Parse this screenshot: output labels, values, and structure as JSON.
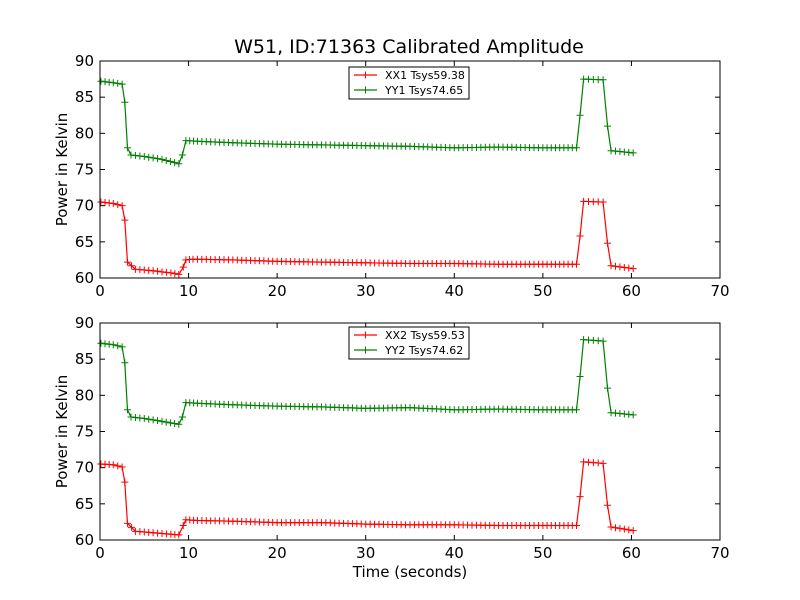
{
  "figure": {
    "title": "W51, ID:71363 Calibrated Amplitude"
  },
  "chart_data": [
    {
      "type": "line",
      "title": "W51, ID:71363 Calibrated Amplitude",
      "xlabel": "",
      "ylabel": "Power in Kelvin",
      "xlim": [
        0,
        70
      ],
      "ylim": [
        60,
        90
      ],
      "xticks": [
        0,
        10,
        20,
        30,
        40,
        50,
        60,
        70
      ],
      "yticks": [
        60,
        65,
        70,
        75,
        80,
        85,
        90
      ],
      "grid": false,
      "legend": "top-center",
      "series": [
        {
          "name": "XX1 Tsys59.38",
          "color": "#ff0000",
          "marker": "plus",
          "points": [
            [
              0.1,
              70.5
            ],
            [
              1.5,
              70.3
            ],
            [
              2.5,
              70.0
            ],
            [
              2.8,
              68.0
            ],
            [
              3.1,
              62.2
            ],
            [
              4,
              61.2
            ],
            [
              6,
              61.0
            ],
            [
              8,
              60.7
            ],
            [
              8.9,
              60.5
            ],
            [
              9.4,
              61.5
            ],
            [
              9.7,
              62.5
            ],
            [
              10.5,
              62.6
            ],
            [
              15,
              62.5
            ],
            [
              20,
              62.3
            ],
            [
              25,
              62.2
            ],
            [
              30,
              62.1
            ],
            [
              35,
              62.0
            ],
            [
              40,
              62.0
            ],
            [
              45,
              61.9
            ],
            [
              50,
              61.9
            ],
            [
              53.8,
              61.9
            ],
            [
              54.2,
              65.8
            ],
            [
              54.6,
              70.6
            ],
            [
              56.8,
              70.5
            ],
            [
              57.3,
              64.8
            ],
            [
              57.7,
              61.7
            ],
            [
              60.2,
              61.3
            ]
          ]
        },
        {
          "name": "YY1 Tsys74.65",
          "color": "#008000",
          "marker": "plus",
          "points": [
            [
              0.1,
              87.2
            ],
            [
              1.5,
              87.0
            ],
            [
              2.5,
              86.8
            ],
            [
              2.8,
              84.3
            ],
            [
              3.1,
              78.0
            ],
            [
              3.5,
              77.0
            ],
            [
              5,
              76.8
            ],
            [
              7,
              76.4
            ],
            [
              8.9,
              75.8
            ],
            [
              9.3,
              77.0
            ],
            [
              9.7,
              79.0
            ],
            [
              11,
              78.9
            ],
            [
              15,
              78.7
            ],
            [
              20,
              78.5
            ],
            [
              25,
              78.4
            ],
            [
              30,
              78.3
            ],
            [
              35,
              78.2
            ],
            [
              40,
              78.0
            ],
            [
              45,
              78.1
            ],
            [
              50,
              78.0
            ],
            [
              53.8,
              78.0
            ],
            [
              54.2,
              82.5
            ],
            [
              54.6,
              87.5
            ],
            [
              56.8,
              87.4
            ],
            [
              57.3,
              81.0
            ],
            [
              57.7,
              77.6
            ],
            [
              60.2,
              77.3
            ]
          ]
        }
      ]
    },
    {
      "type": "line",
      "title": "",
      "xlabel": "Time (seconds)",
      "ylabel": "Power in Kelvin",
      "xlim": [
        0,
        70
      ],
      "ylim": [
        60,
        90
      ],
      "xticks": [
        0,
        10,
        20,
        30,
        40,
        50,
        60,
        70
      ],
      "yticks": [
        60,
        65,
        70,
        75,
        80,
        85,
        90
      ],
      "grid": false,
      "legend": "top-center",
      "series": [
        {
          "name": "XX2 Tsys59.53",
          "color": "#ff0000",
          "marker": "plus",
          "points": [
            [
              0.1,
              70.5
            ],
            [
              1.5,
              70.4
            ],
            [
              2.5,
              70.1
            ],
            [
              2.8,
              68.0
            ],
            [
              3.1,
              62.3
            ],
            [
              4,
              61.2
            ],
            [
              6,
              61.0
            ],
            [
              8,
              60.8
            ],
            [
              8.9,
              60.7
            ],
            [
              9.4,
              62.0
            ],
            [
              9.7,
              62.8
            ],
            [
              11,
              62.7
            ],
            [
              15,
              62.6
            ],
            [
              20,
              62.4
            ],
            [
              25,
              62.4
            ],
            [
              30,
              62.2
            ],
            [
              35,
              62.1
            ],
            [
              40,
              62.1
            ],
            [
              45,
              62.0
            ],
            [
              50,
              62.0
            ],
            [
              53.8,
              62.0
            ],
            [
              54.2,
              66.0
            ],
            [
              54.6,
              70.8
            ],
            [
              56.8,
              70.6
            ],
            [
              57.3,
              64.8
            ],
            [
              57.7,
              61.8
            ],
            [
              60.2,
              61.3
            ]
          ]
        },
        {
          "name": "YY2 Tsys74.62",
          "color": "#008000",
          "marker": "plus",
          "points": [
            [
              0.1,
              87.2
            ],
            [
              1.5,
              87.0
            ],
            [
              2.5,
              86.7
            ],
            [
              2.8,
              84.5
            ],
            [
              3.1,
              78.0
            ],
            [
              3.5,
              77.0
            ],
            [
              5,
              76.8
            ],
            [
              7,
              76.4
            ],
            [
              8.9,
              76.0
            ],
            [
              9.3,
              77.0
            ],
            [
              9.7,
              79.0
            ],
            [
              11,
              78.9
            ],
            [
              15,
              78.7
            ],
            [
              20,
              78.5
            ],
            [
              25,
              78.4
            ],
            [
              30,
              78.2
            ],
            [
              35,
              78.3
            ],
            [
              40,
              78.0
            ],
            [
              45,
              78.1
            ],
            [
              50,
              78.0
            ],
            [
              53.8,
              78.0
            ],
            [
              54.2,
              82.6
            ],
            [
              54.6,
              87.7
            ],
            [
              56.8,
              87.5
            ],
            [
              57.3,
              81.0
            ],
            [
              57.7,
              77.6
            ],
            [
              60.2,
              77.3
            ]
          ]
        }
      ]
    }
  ]
}
